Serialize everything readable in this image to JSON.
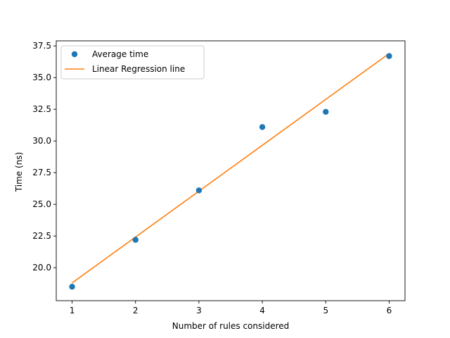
{
  "chart_data": {
    "type": "scatter",
    "title": "",
    "xlabel": "Number of rules considered",
    "ylabel": "Time (ns)",
    "xlim": [
      0.75,
      6.25
    ],
    "ylim": [
      17.4,
      37.9
    ],
    "x_ticks": [
      1,
      2,
      3,
      4,
      5,
      6
    ],
    "x_tick_labels": [
      "1",
      "2",
      "3",
      "4",
      "5",
      "6"
    ],
    "y_ticks": [
      20.0,
      22.5,
      25.0,
      27.5,
      30.0,
      32.5,
      35.0,
      37.5
    ],
    "y_tick_labels": [
      "20.0",
      "22.5",
      "25.0",
      "27.5",
      "30.0",
      "32.5",
      "35.0",
      "37.5"
    ],
    "grid": false,
    "legend_position": "top-left",
    "series": [
      {
        "name": "Average time",
        "type": "scatter",
        "color": "#1f77b4",
        "x": [
          1,
          2,
          3,
          4,
          5,
          6
        ],
        "y": [
          18.5,
          22.2,
          26.1,
          31.1,
          32.3,
          36.7
        ]
      },
      {
        "name": "Linear Regression line",
        "type": "line",
        "color": "#ff7f0e",
        "x": [
          1,
          6
        ],
        "y": [
          18.8,
          36.9
        ]
      }
    ]
  }
}
